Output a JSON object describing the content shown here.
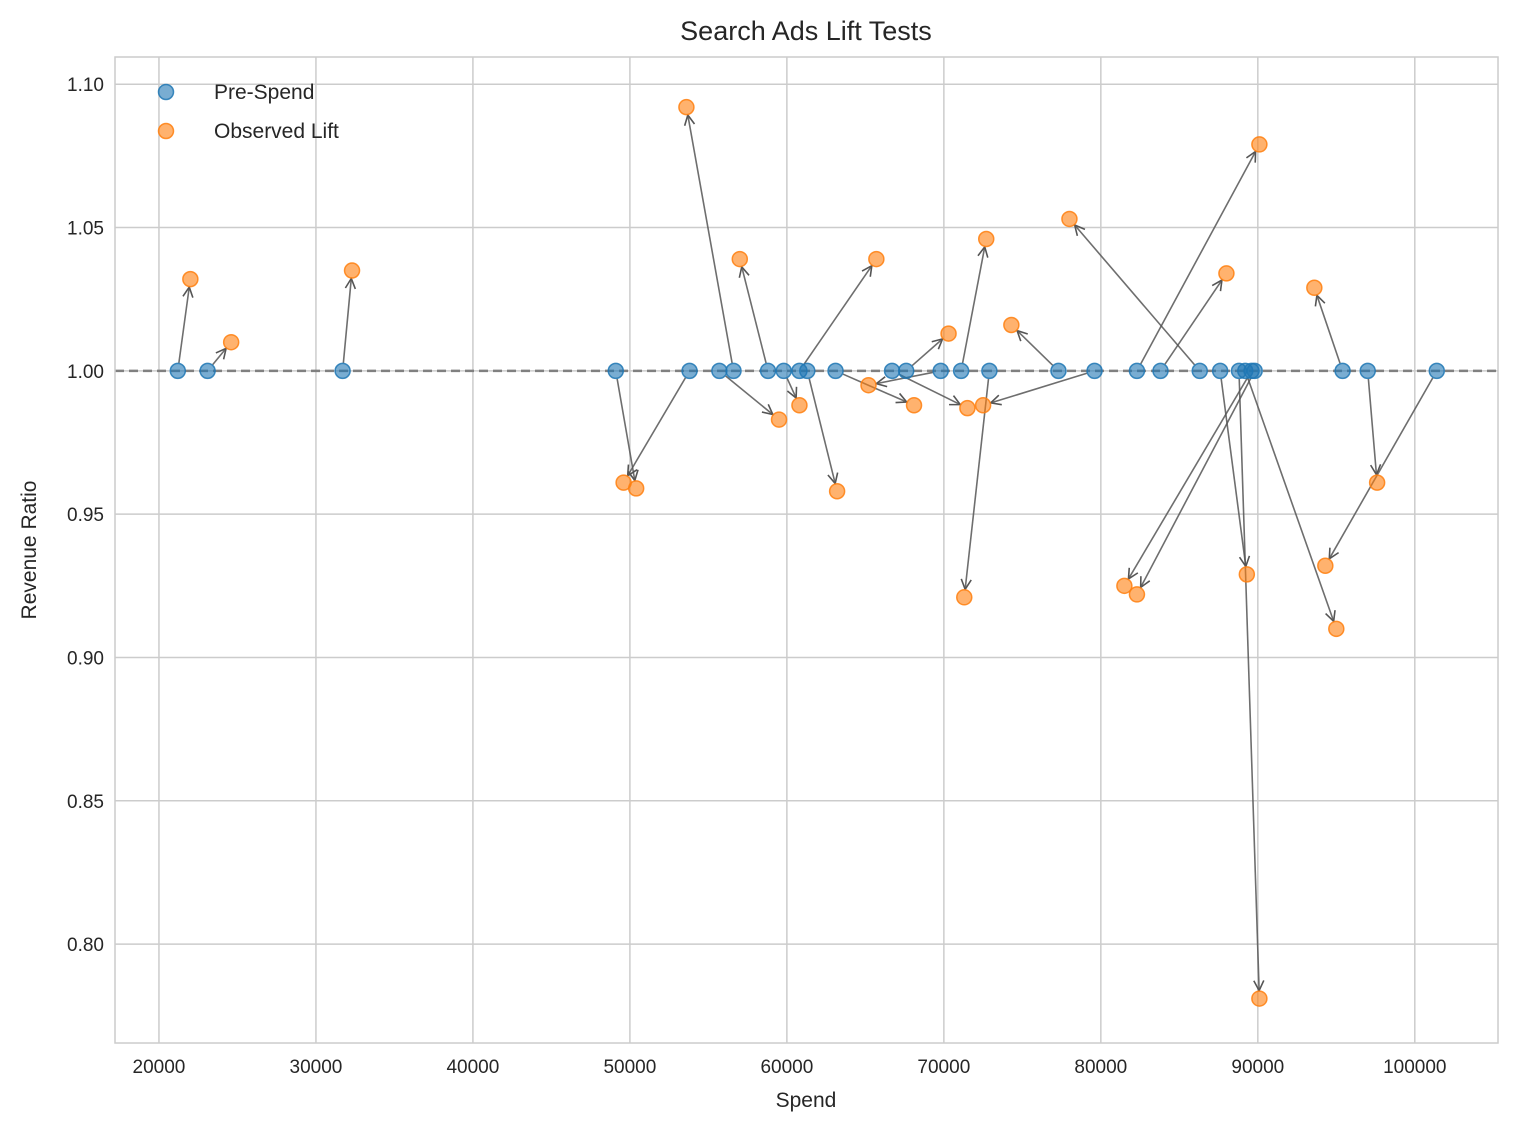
{
  "chart_data": {
    "type": "scatter",
    "title": "Search Ads Lift Tests",
    "xlabel": "Spend",
    "ylabel": "Revenue Ratio",
    "xlim": [
      17200,
      105300
    ],
    "ylim": [
      0.7655,
      1.1095
    ],
    "xticks": [
      20000,
      30000,
      40000,
      50000,
      60000,
      70000,
      80000,
      90000,
      100000
    ],
    "xtick_labels": [
      "20000",
      "30000",
      "40000",
      "50000",
      "60000",
      "70000",
      "80000",
      "90000",
      "100000"
    ],
    "yticks": [
      0.8,
      0.85,
      0.9,
      0.95,
      1.0,
      1.05,
      1.1
    ],
    "ytick_labels": [
      "0.80",
      "0.85",
      "0.90",
      "0.95",
      "1.00",
      "1.05",
      "1.10"
    ],
    "grid": true,
    "legend": {
      "position": "top-left"
    },
    "reference_line": {
      "y": 1.0,
      "style": "dashed",
      "color": "#808080"
    },
    "colors": {
      "pre": "#1f77b4",
      "post": "#ff7f0e",
      "arrow": "#555555",
      "grid": "#cccccc",
      "frame": "#cccccc"
    },
    "series": [
      {
        "name": "Pre-Spend",
        "color": "#1f77b4",
        "points": [
          {
            "x": 21200,
            "y": 1.0
          },
          {
            "x": 23100,
            "y": 1.0
          },
          {
            "x": 31700,
            "y": 1.0
          },
          {
            "x": 49100,
            "y": 1.0
          },
          {
            "x": 53800,
            "y": 1.0
          },
          {
            "x": 55700,
            "y": 1.0
          },
          {
            "x": 56600,
            "y": 1.0
          },
          {
            "x": 58800,
            "y": 1.0
          },
          {
            "x": 59800,
            "y": 1.0
          },
          {
            "x": 60800,
            "y": 1.0
          },
          {
            "x": 61300,
            "y": 1.0
          },
          {
            "x": 63100,
            "y": 1.0
          },
          {
            "x": 66700,
            "y": 1.0
          },
          {
            "x": 67600,
            "y": 1.0
          },
          {
            "x": 69800,
            "y": 1.0
          },
          {
            "x": 71100,
            "y": 1.0
          },
          {
            "x": 72900,
            "y": 1.0
          },
          {
            "x": 77300,
            "y": 1.0
          },
          {
            "x": 79600,
            "y": 1.0
          },
          {
            "x": 82300,
            "y": 1.0
          },
          {
            "x": 83800,
            "y": 1.0
          },
          {
            "x": 86300,
            "y": 1.0
          },
          {
            "x": 87600,
            "y": 1.0
          },
          {
            "x": 88800,
            "y": 1.0
          },
          {
            "x": 89200,
            "y": 1.0
          },
          {
            "x": 89600,
            "y": 1.0
          },
          {
            "x": 89800,
            "y": 1.0
          },
          {
            "x": 95400,
            "y": 1.0
          },
          {
            "x": 97000,
            "y": 1.0
          },
          {
            "x": 101400,
            "y": 1.0
          }
        ]
      },
      {
        "name": "Observed Lift",
        "color": "#ff7f0e",
        "points": [
          {
            "x": 22000,
            "y": 1.032
          },
          {
            "x": 24600,
            "y": 1.01
          },
          {
            "x": 32300,
            "y": 1.035
          },
          {
            "x": 49600,
            "y": 0.961
          },
          {
            "x": 50400,
            "y": 0.959
          },
          {
            "x": 53600,
            "y": 1.092
          },
          {
            "x": 57000,
            "y": 1.039
          },
          {
            "x": 59500,
            "y": 0.983
          },
          {
            "x": 60800,
            "y": 0.988
          },
          {
            "x": 63200,
            "y": 0.958
          },
          {
            "x": 65200,
            "y": 0.995
          },
          {
            "x": 65700,
            "y": 1.039
          },
          {
            "x": 68100,
            "y": 0.988
          },
          {
            "x": 70300,
            "y": 1.013
          },
          {
            "x": 71300,
            "y": 0.921
          },
          {
            "x": 71500,
            "y": 0.987
          },
          {
            "x": 72500,
            "y": 0.988
          },
          {
            "x": 72700,
            "y": 1.046
          },
          {
            "x": 74300,
            "y": 1.016
          },
          {
            "x": 78000,
            "y": 1.053
          },
          {
            "x": 81500,
            "y": 0.925
          },
          {
            "x": 82300,
            "y": 0.922
          },
          {
            "x": 88000,
            "y": 1.034
          },
          {
            "x": 89300,
            "y": 0.929
          },
          {
            "x": 90100,
            "y": 1.079
          },
          {
            "x": 90100,
            "y": 0.781
          },
          {
            "x": 93600,
            "y": 1.029
          },
          {
            "x": 94300,
            "y": 0.932
          },
          {
            "x": 95000,
            "y": 0.91
          },
          {
            "x": 97600,
            "y": 0.961
          }
        ]
      }
    ],
    "arrows": [
      {
        "from": [
          21200,
          1.0
        ],
        "to": [
          22000,
          1.032
        ]
      },
      {
        "from": [
          23100,
          1.0
        ],
        "to": [
          24600,
          1.01
        ]
      },
      {
        "from": [
          31700,
          1.0
        ],
        "to": [
          32300,
          1.035
        ]
      },
      {
        "from": [
          49100,
          1.0
        ],
        "to": [
          50400,
          0.959
        ]
      },
      {
        "from": [
          53800,
          1.0
        ],
        "to": [
          49600,
          0.961
        ]
      },
      {
        "from": [
          56600,
          1.0
        ],
        "to": [
          53600,
          1.092
        ]
      },
      {
        "from": [
          55700,
          1.0
        ],
        "to": [
          59500,
          0.983
        ]
      },
      {
        "from": [
          58800,
          1.0
        ],
        "to": [
          57000,
          1.039
        ]
      },
      {
        "from": [
          59800,
          1.0
        ],
        "to": [
          60800,
          0.988
        ]
      },
      {
        "from": [
          60800,
          1.0
        ],
        "to": [
          65700,
          1.039
        ]
      },
      {
        "from": [
          61300,
          1.0
        ],
        "to": [
          63200,
          0.958
        ]
      },
      {
        "from": [
          63100,
          1.0
        ],
        "to": [
          68100,
          0.988
        ]
      },
      {
        "from": [
          69800,
          1.0
        ],
        "to": [
          65200,
          0.995
        ]
      },
      {
        "from": [
          67600,
          1.0
        ],
        "to": [
          70300,
          1.013
        ]
      },
      {
        "from": [
          66700,
          1.0
        ],
        "to": [
          71500,
          0.987
        ]
      },
      {
        "from": [
          71100,
          1.0
        ],
        "to": [
          72700,
          1.046
        ]
      },
      {
        "from": [
          72900,
          1.0
        ],
        "to": [
          71300,
          0.921
        ]
      },
      {
        "from": [
          79600,
          1.0
        ],
        "to": [
          72500,
          0.988
        ]
      },
      {
        "from": [
          77300,
          1.0
        ],
        "to": [
          74300,
          1.016
        ]
      },
      {
        "from": [
          86300,
          1.0
        ],
        "to": [
          78000,
          1.053
        ]
      },
      {
        "from": [
          82300,
          1.0
        ],
        "to": [
          90100,
          1.079
        ]
      },
      {
        "from": [
          83800,
          1.0
        ],
        "to": [
          88000,
          1.034
        ]
      },
      {
        "from": [
          89600,
          1.0
        ],
        "to": [
          81500,
          0.925
        ]
      },
      {
        "from": [
          89800,
          1.0
        ],
        "to": [
          82300,
          0.922
        ]
      },
      {
        "from": [
          87600,
          1.0
        ],
        "to": [
          89300,
          0.929
        ]
      },
      {
        "from": [
          88800,
          1.0
        ],
        "to": [
          90100,
          0.781
        ]
      },
      {
        "from": [
          89200,
          1.0
        ],
        "to": [
          95000,
          0.91
        ]
      },
      {
        "from": [
          95400,
          1.0
        ],
        "to": [
          93600,
          1.029
        ]
      },
      {
        "from": [
          97000,
          1.0
        ],
        "to": [
          97600,
          0.961
        ]
      },
      {
        "from": [
          101400,
          1.0
        ],
        "to": [
          94300,
          0.932
        ]
      }
    ]
  }
}
